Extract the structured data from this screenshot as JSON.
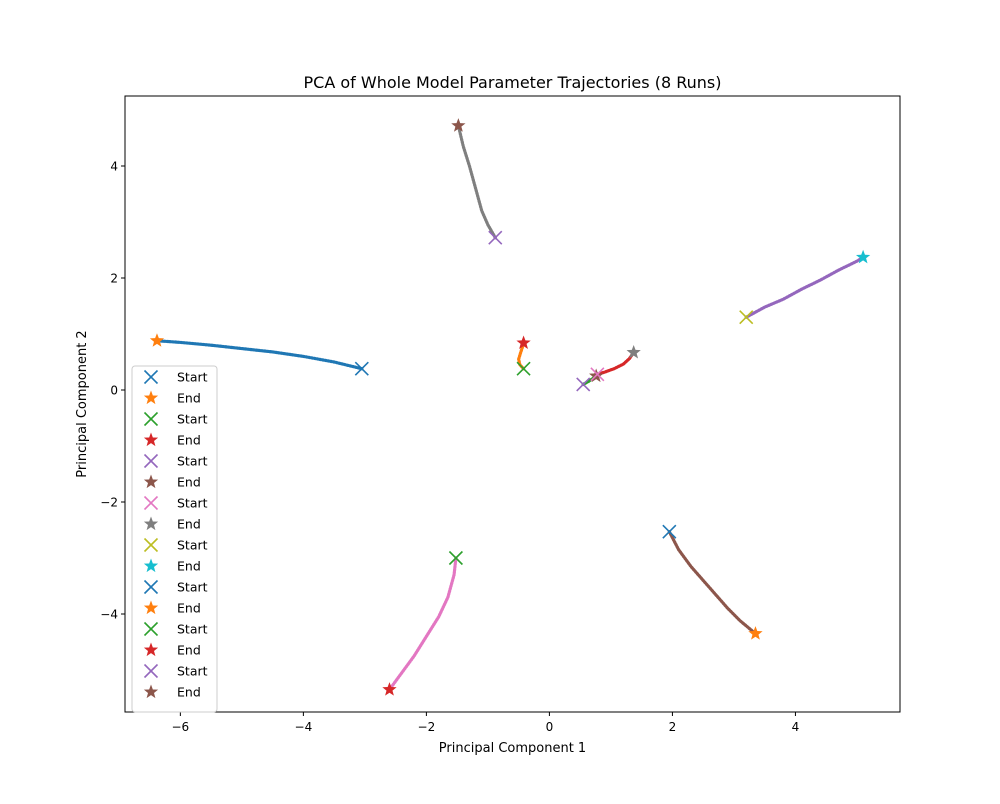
{
  "chart_data": {
    "type": "scatter",
    "title": "PCA of Whole Model Parameter Trajectories (8 Runs)",
    "xlabel": "Principal Component 1",
    "ylabel": "Principal Component 2",
    "xlim": [
      -6.9,
      5.7
    ],
    "ylim": [
      -5.75,
      5.25
    ],
    "xticks": [
      -6,
      -4,
      -2,
      0,
      2,
      4
    ],
    "yticks": [
      -4,
      -2,
      0,
      2,
      4
    ],
    "xtick_labels": [
      "−6",
      "−4",
      "−2",
      "0",
      "2",
      "4"
    ],
    "ytick_labels": [
      "−4",
      "−2",
      "0",
      "2",
      "4"
    ],
    "grid": false,
    "legend_position": "lower-left",
    "runs": [
      {
        "color": "#1f77b4",
        "start_color": "#1f77b4",
        "end_color": "#ff7f0e",
        "path": [
          [
            -3.05,
            0.38
          ],
          [
            -3.5,
            0.5
          ],
          [
            -4.0,
            0.6
          ],
          [
            -4.5,
            0.68
          ],
          [
            -5.0,
            0.74
          ],
          [
            -5.5,
            0.8
          ],
          [
            -6.0,
            0.85
          ],
          [
            -6.38,
            0.88
          ]
        ]
      },
      {
        "color": "#ff7f0e",
        "start_color": "#2ca02c",
        "end_color": "#d62728",
        "path": [
          [
            -0.42,
            0.38
          ],
          [
            -0.48,
            0.45
          ],
          [
            -0.5,
            0.55
          ],
          [
            -0.47,
            0.66
          ],
          [
            -0.44,
            0.76
          ],
          [
            -0.42,
            0.84
          ]
        ]
      },
      {
        "color": "#2ca02c",
        "start_color": "#9467bd",
        "end_color": "#8c564b",
        "path": [
          [
            0.55,
            0.1
          ],
          [
            0.63,
            0.15
          ],
          [
            0.7,
            0.2
          ],
          [
            0.76,
            0.25
          ]
        ]
      },
      {
        "color": "#d62728",
        "start_color": "#e377c2",
        "end_color": "#7f7f7f",
        "path": [
          [
            0.78,
            0.28
          ],
          [
            0.9,
            0.32
          ],
          [
            1.05,
            0.38
          ],
          [
            1.2,
            0.46
          ],
          [
            1.3,
            0.56
          ],
          [
            1.37,
            0.67
          ]
        ]
      },
      {
        "color": "#9467bd",
        "start_color": "#bcbd22",
        "end_color": "#17becf",
        "path": [
          [
            3.2,
            1.3
          ],
          [
            3.5,
            1.48
          ],
          [
            3.8,
            1.62
          ],
          [
            4.1,
            1.8
          ],
          [
            4.4,
            1.96
          ],
          [
            4.7,
            2.14
          ],
          [
            5.0,
            2.3
          ],
          [
            5.1,
            2.37
          ]
        ]
      },
      {
        "color": "#8c564b",
        "start_color": "#1f77b4",
        "end_color": "#ff7f0e",
        "path": [
          [
            1.95,
            -2.53
          ],
          [
            2.1,
            -2.85
          ],
          [
            2.3,
            -3.15
          ],
          [
            2.5,
            -3.4
          ],
          [
            2.7,
            -3.65
          ],
          [
            2.9,
            -3.9
          ],
          [
            3.1,
            -4.12
          ],
          [
            3.35,
            -4.35
          ]
        ]
      },
      {
        "color": "#e377c2",
        "start_color": "#2ca02c",
        "end_color": "#d62728",
        "path": [
          [
            -1.52,
            -3.0
          ],
          [
            -1.55,
            -3.3
          ],
          [
            -1.65,
            -3.7
          ],
          [
            -1.8,
            -4.05
          ],
          [
            -2.0,
            -4.4
          ],
          [
            -2.2,
            -4.75
          ],
          [
            -2.4,
            -5.05
          ],
          [
            -2.6,
            -5.35
          ]
        ]
      },
      {
        "color": "#7f7f7f",
        "start_color": "#9467bd",
        "end_color": "#8c564b",
        "path": [
          [
            -0.88,
            2.72
          ],
          [
            -1.0,
            2.95
          ],
          [
            -1.1,
            3.2
          ],
          [
            -1.2,
            3.6
          ],
          [
            -1.3,
            4.0
          ],
          [
            -1.4,
            4.35
          ],
          [
            -1.48,
            4.72
          ]
        ]
      }
    ],
    "legend": [
      {
        "label": "Start",
        "marker": "x",
        "color": "#1f77b4"
      },
      {
        "label": "End",
        "marker": "star",
        "color": "#ff7f0e"
      },
      {
        "label": "Start",
        "marker": "x",
        "color": "#2ca02c"
      },
      {
        "label": "End",
        "marker": "star",
        "color": "#d62728"
      },
      {
        "label": "Start",
        "marker": "x",
        "color": "#9467bd"
      },
      {
        "label": "End",
        "marker": "star",
        "color": "#8c564b"
      },
      {
        "label": "Start",
        "marker": "x",
        "color": "#e377c2"
      },
      {
        "label": "End",
        "marker": "star",
        "color": "#7f7f7f"
      },
      {
        "label": "Start",
        "marker": "x",
        "color": "#bcbd22"
      },
      {
        "label": "End",
        "marker": "star",
        "color": "#17becf"
      },
      {
        "label": "Start",
        "marker": "x",
        "color": "#1f77b4"
      },
      {
        "label": "End",
        "marker": "star",
        "color": "#ff7f0e"
      },
      {
        "label": "Start",
        "marker": "x",
        "color": "#2ca02c"
      },
      {
        "label": "End",
        "marker": "star",
        "color": "#d62728"
      },
      {
        "label": "Start",
        "marker": "x",
        "color": "#9467bd"
      },
      {
        "label": "End",
        "marker": "star",
        "color": "#8c564b"
      }
    ]
  }
}
